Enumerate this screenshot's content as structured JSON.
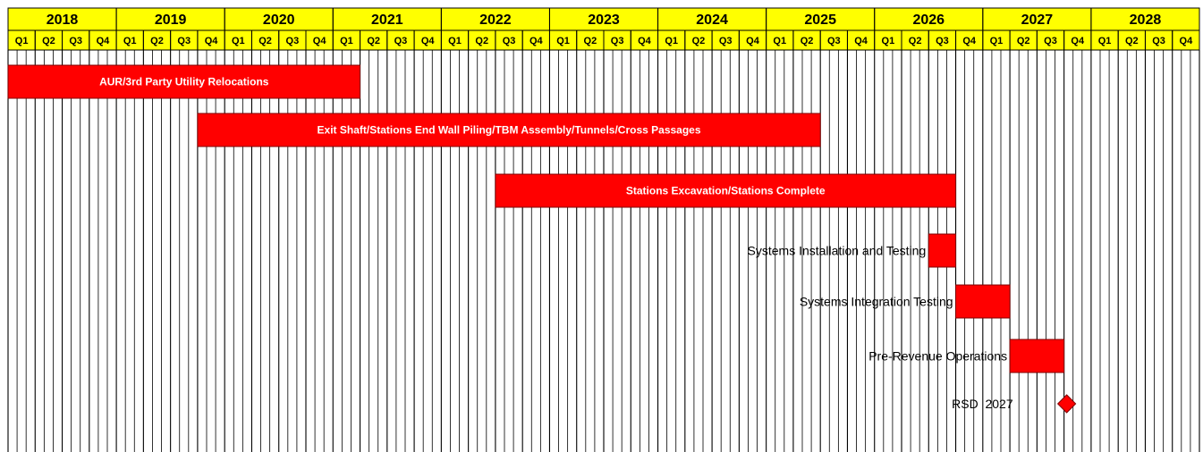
{
  "chart_data": {
    "type": "gantt",
    "years": [
      "2018",
      "2019",
      "2020",
      "2021",
      "2022",
      "2023",
      "2024",
      "2025",
      "2026",
      "2027",
      "2028"
    ],
    "quarters": [
      "Q1",
      "Q2",
      "Q3",
      "Q4"
    ],
    "tasks": [
      {
        "name": "AUR/3rd Party Utility Relocations",
        "start": "2018 Q1",
        "end": "2021 Q1",
        "label_position": "inside"
      },
      {
        "name": "Exit Shaft/Stations End Wall Piling/TBM Assembly/Tunnels/Cross Passages",
        "start": "2019 Q4",
        "end": "2025 Q2",
        "label_position": "inside"
      },
      {
        "name": "Stations Excavation/Stations Complete",
        "start": "2022 Q3",
        "end": "2026 Q3",
        "label_position": "inside"
      },
      {
        "name": "Systems Installation and Testing",
        "start": "2026 Q3",
        "end": "2026 Q3",
        "label_position": "left"
      },
      {
        "name": "Systems Integration Testing",
        "start": "2026 Q4",
        "end": "2027 Q1",
        "label_position": "left"
      },
      {
        "name": "Pre-Revenue Operations",
        "start": "2027 Q2",
        "end": "2027 Q3",
        "label_position": "left"
      }
    ],
    "milestones": [
      {
        "name": "RSD  2027",
        "date": "2027 Q4"
      }
    ],
    "colors": {
      "header_fill": "#ffff00",
      "bar_fill": "#ff0000",
      "bar_stroke": "#7f0000",
      "milestone_fill": "#ff0000",
      "grid": "#000000"
    }
  }
}
